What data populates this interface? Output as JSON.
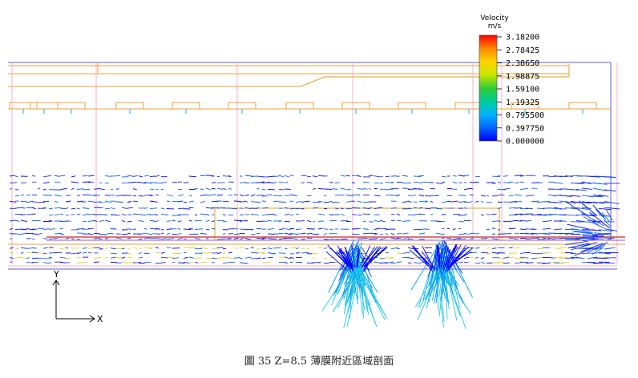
{
  "legend": {
    "title": "Velocity",
    "unit": "m/s",
    "values": [
      "3.18200",
      "2.78425",
      "2.38650",
      "1.98875",
      "1.59100",
      "1.19325",
      "0.795500",
      "0.397750",
      "0.000000"
    ],
    "colors": [
      "#ff0000",
      "#ff8800",
      "#ffd400",
      "#c8e600",
      "#33cc33",
      "#00cc99",
      "#00b4ff",
      "#0064ff",
      "#0000ff"
    ]
  },
  "axes": {
    "y_label": "Y",
    "x_label": "X"
  },
  "caption": "圖 35 Z=8.5 薄膜附近區域剖面"
}
